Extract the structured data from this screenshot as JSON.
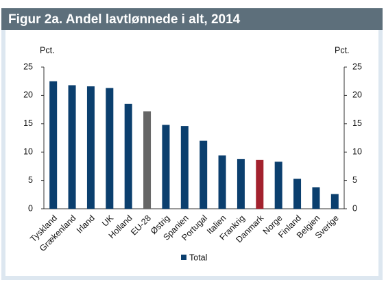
{
  "chart_data": {
    "type": "bar",
    "title": "Figur 2a. Andel lavtlønnede i alt, 2014",
    "y_label": "Pct.",
    "y2_label": "Pct.",
    "categories": [
      "Tyskland",
      "Grækenland",
      "Irland",
      "UK",
      "Holland",
      "EU-28",
      "Østrig",
      "Spanien",
      "Portugal",
      "Italien",
      "Frankrig",
      "Danmark",
      "Norge",
      "Finland",
      "Belgien",
      "Sverige"
    ],
    "series": [
      {
        "name": "Total",
        "color": "#0b3f6e",
        "values": [
          22.5,
          21.8,
          21.6,
          21.3,
          18.5,
          17.2,
          14.8,
          14.6,
          12.0,
          9.4,
          8.8,
          8.6,
          8.3,
          5.3,
          3.8,
          2.6
        ]
      }
    ],
    "colors": [
      "#0b3f6e",
      "#0b3f6e",
      "#0b3f6e",
      "#0b3f6e",
      "#0b3f6e",
      "#666666",
      "#0b3f6e",
      "#0b3f6e",
      "#0b3f6e",
      "#0b3f6e",
      "#0b3f6e",
      "#a3222e",
      "#0b3f6e",
      "#0b3f6e",
      "#0b3f6e",
      "#0b3f6e"
    ],
    "ylim": [
      0,
      25
    ],
    "yticks": [
      0,
      5,
      10,
      15,
      20,
      25
    ],
    "y2lim": [
      0,
      25
    ],
    "y2ticks": [
      0,
      5,
      10,
      15,
      20,
      25
    ],
    "grid": false,
    "legend": "bottom"
  }
}
